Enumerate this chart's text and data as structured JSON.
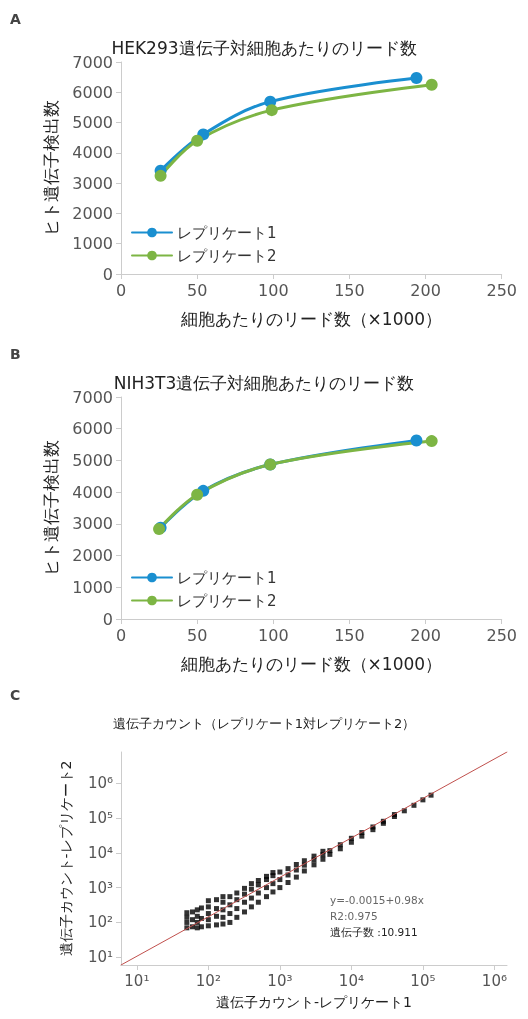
{
  "chart_data": [
    {
      "type": "line",
      "title": "HEK293遺伝子対細胞あたりのリード数",
      "xlabel": "細胞あたりのリード数（×1000）",
      "ylabel": "ヒト遺伝子検出数",
      "annotations": [
        "A"
      ],
      "xlim": [
        0,
        250
      ],
      "xticks": [
        0,
        50,
        100,
        150,
        200,
        250
      ],
      "ylim": [
        0,
        7000
      ],
      "yticks": [
        0,
        1000,
        2000,
        3000,
        4000,
        5000,
        6000,
        7000
      ],
      "grid": false,
      "legend": "bottom left",
      "marker": "circle",
      "line_style": "solid",
      "series": [
        {
          "name": "レプリケート1",
          "color": "#1a8fd0",
          "x": [
            26,
            54,
            98,
            194
          ],
          "values": [
            3410,
            4610,
            5690,
            6470
          ]
        },
        {
          "name": "レプリケート2",
          "color": "#7db544",
          "x": [
            26,
            50,
            99,
            204
          ],
          "values": [
            3240,
            4400,
            5410,
            6250
          ]
        }
      ]
    },
    {
      "type": "line",
      "title": "NIH3T3遺伝子対細胞あたりのリード数",
      "xlabel": "細胞あたりのリード数（×1000）",
      "ylabel": "ヒト遺伝子検出数",
      "annotations": [
        "B"
      ],
      "xlim": [
        0,
        250
      ],
      "xticks": [
        0,
        50,
        100,
        150,
        200,
        250
      ],
      "ylim": [
        0,
        7000
      ],
      "yticks": [
        0,
        1000,
        2000,
        3000,
        4000,
        5000,
        6000,
        7000
      ],
      "grid": false,
      "legend": "bottom left",
      "marker": "circle",
      "line_style": "solid",
      "series": [
        {
          "name": "レプリケート1",
          "color": "#1a8fd0",
          "x": [
            26,
            54,
            98,
            194
          ],
          "values": [
            2880,
            4040,
            4870,
            5630
          ]
        },
        {
          "name": "レプリケート2",
          "color": "#7db544",
          "x": [
            25,
            50,
            98,
            204
          ],
          "values": [
            2840,
            3920,
            4870,
            5610
          ]
        }
      ]
    },
    {
      "type": "scatter",
      "title": "遺伝子カウント（レプリケート1対レプリケート2）",
      "xlabel": "遺伝子カウント-レプリケート1",
      "ylabel": "遺伝子カウント-レプリケート2",
      "annotations": [
        "C",
        "y=-0.0015+0.98x",
        "R2:0.975",
        "遺伝子数 :10.911"
      ],
      "log": "xy",
      "xlim": [
        6,
        1500000
      ],
      "ylim": [
        6,
        7800000
      ],
      "xticks": [
        {
          "value": 10,
          "label": "10¹"
        },
        {
          "value": 100,
          "label": "10²"
        },
        {
          "value": 1000,
          "label": "10³"
        },
        {
          "value": 10000,
          "label": "10⁴"
        },
        {
          "value": 100000,
          "label": "10⁵"
        },
        {
          "value": 1000000,
          "label": "10⁶"
        }
      ],
      "yticks": [
        {
          "value": 10,
          "label": "10¹"
        },
        {
          "value": 100,
          "label": "10²"
        },
        {
          "value": 1000,
          "label": "10³"
        },
        {
          "value": 10000,
          "label": "10⁴"
        },
        {
          "value": 100000,
          "label": "10⁵"
        },
        {
          "value": 1000000,
          "label": "10⁶"
        }
      ],
      "grid": false,
      "marker": "square",
      "series": [
        {
          "color": "#000000",
          "x": [
            50,
            50,
            50,
            50,
            60,
            60,
            60,
            70,
            70,
            70,
            70,
            80,
            80,
            80,
            100,
            100,
            100,
            100,
            100,
            130,
            130,
            130,
            130,
            160,
            160,
            160,
            160,
            160,
            200,
            200,
            200,
            200,
            250,
            250,
            250,
            250,
            320,
            320,
            320,
            320,
            400,
            400,
            400,
            400,
            500,
            500,
            500,
            500,
            650,
            650,
            650,
            650,
            800,
            800,
            800,
            800,
            1000,
            1000,
            1000,
            1300,
            1300,
            1300,
            1700,
            1700,
            1700,
            2200,
            2200,
            2200,
            3000,
            3000,
            3000,
            4000,
            4000,
            4000,
            5000,
            5000,
            7000,
            7000,
            10000,
            10000,
            14000,
            14000,
            20000,
            20000,
            28000,
            28000,
            40000,
            40000,
            55000,
            75000,
            100000,
            130000
          ],
          "values": [
            70,
            100,
            140,
            190,
            75,
            120,
            200,
            70,
            100,
            150,
            230,
            75,
            130,
            260,
            80,
            120,
            180,
            280,
            420,
            85,
            150,
            250,
            450,
            90,
            140,
            230,
            380,
            550,
            100,
            180,
            320,
            550,
            140,
            250,
            450,
            700,
            200,
            380,
            650,
            950,
            280,
            500,
            900,
            1300,
            380,
            700,
            1200,
            1600,
            550,
            1000,
            1700,
            2100,
            750,
            1300,
            2200,
            2700,
            1000,
            1700,
            2800,
            1400,
            2300,
            3500,
            2000,
            3200,
            4600,
            3000,
            4400,
            5900,
            4500,
            6200,
            8000,
            6500,
            8800,
            11000,
            9000,
            11500,
            13000,
            17000,
            20000,
            26000,
            30000,
            38000,
            46000,
            55000,
            70000,
            80000,
            110000,
            125000,
            160000,
            230000,
            330000,
            450000
          ]
        },
        {
          "type": "line",
          "color": "#c0504d",
          "marker": "none",
          "x": [
            6,
            1500000
          ],
          "values": [
            6,
            7800000
          ]
        }
      ]
    }
  ]
}
